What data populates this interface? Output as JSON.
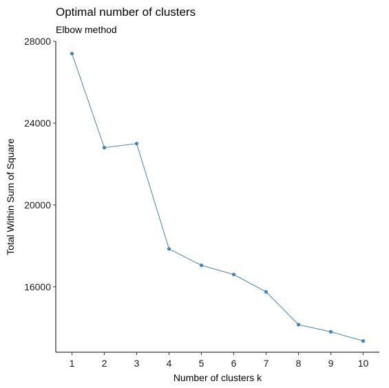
{
  "chart_data": {
    "type": "line",
    "title": "Optimal number of clusters",
    "subtitle": "Elbow method",
    "xlabel": "Number of clusters k",
    "ylabel": "Total Within Sum of Square",
    "x": [
      1,
      2,
      3,
      4,
      5,
      6,
      7,
      8,
      9,
      10
    ],
    "series": [
      {
        "values": [
          27400,
          22800,
          23000,
          17850,
          17050,
          16600,
          15750,
          14150,
          13800,
          13350
        ]
      }
    ],
    "xticks": [
      "1",
      "2",
      "3",
      "4",
      "5",
      "6",
      "7",
      "8",
      "9",
      "10"
    ],
    "yticks": [
      "16000",
      "20000",
      "24000",
      "28000"
    ],
    "ylim": [
      12800,
      28000
    ],
    "grid": false,
    "legend": "none",
    "color": "#4682b4"
  }
}
